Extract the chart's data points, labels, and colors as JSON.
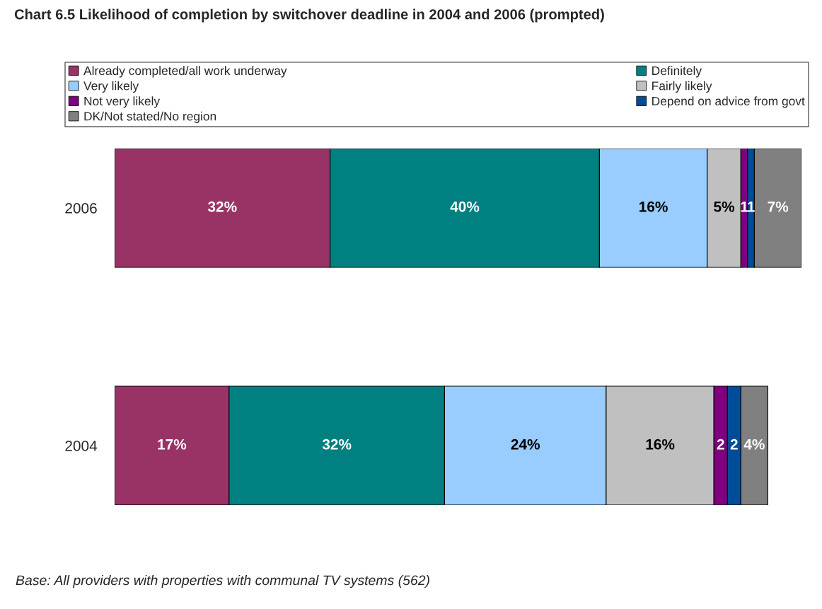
{
  "chart_data": {
    "type": "bar",
    "orientation": "horizontal",
    "stacked": true,
    "title": "Chart 6.5 Likelihood of completion by switchover deadline in 2004 and 2006 (prompted)",
    "categories": [
      "2006",
      "2004"
    ],
    "series": [
      {
        "name": "Already completed/all work underway",
        "color": "#993366",
        "values": [
          32,
          17
        ],
        "value_labels": [
          "32%",
          "17%"
        ]
      },
      {
        "name": "Definitely",
        "color": "#008080",
        "values": [
          40,
          32
        ],
        "value_labels": [
          "40%",
          "32%"
        ]
      },
      {
        "name": "Very likely",
        "color": "#99ccff",
        "values": [
          16,
          24
        ],
        "value_labels": [
          "16%",
          "24%"
        ]
      },
      {
        "name": "Fairly likely",
        "color": "#c0c0c0",
        "values": [
          5,
          16
        ],
        "value_labels": [
          "5%",
          "16%"
        ]
      },
      {
        "name": "Not very likely",
        "color": "#800080",
        "values": [
          1,
          2
        ],
        "value_labels": [
          "1",
          "2"
        ]
      },
      {
        "name": "Depend on advice from govt",
        "color": "#004c99",
        "values": [
          1,
          2
        ],
        "value_labels": [
          "1",
          "2"
        ]
      },
      {
        "name": "DK/Not stated/No region",
        "color": "#808080",
        "values": [
          7,
          4
        ],
        "value_labels": [
          "7%",
          "4%"
        ]
      }
    ],
    "xlim": [
      0,
      102
    ],
    "tick_labels": "y",
    "legend": "top",
    "grid": false,
    "annotations": [
      "Base: All providers with properties with communal TV systems (562)"
    ]
  }
}
